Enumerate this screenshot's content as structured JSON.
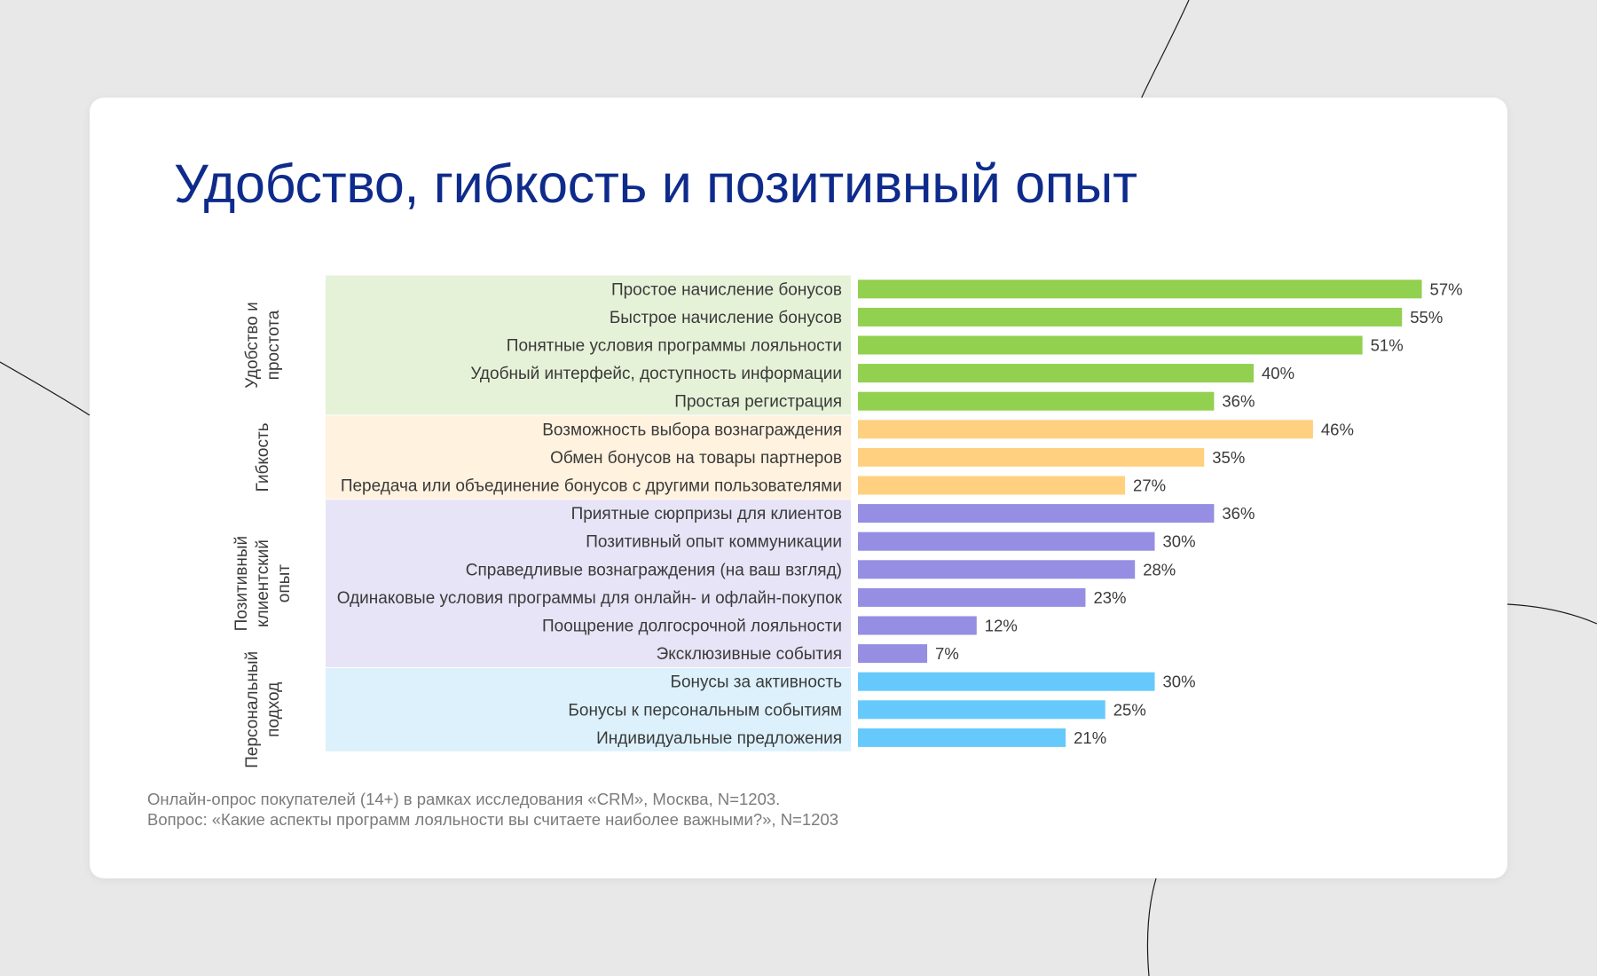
{
  "slide": {
    "title": "Удобство, гибкость и позитивный опыт"
  },
  "chart_data": {
    "type": "bar",
    "orientation": "horizontal",
    "value_suffix": "%",
    "groups": [
      {
        "name": "Удобство и простота",
        "color": "#92d050",
        "band_color": "#e6f2d8",
        "items": [
          {
            "label": "Простое начисление бонусов",
            "value": 57
          },
          {
            "label": "Быстрое начисление бонусов",
            "value": 55
          },
          {
            "label": "Понятные условия программы лояльности",
            "value": 51
          },
          {
            "label": "Удобный интерфейс, доступность информации",
            "value": 40
          },
          {
            "label": "Простая регистрация",
            "value": 36
          }
        ]
      },
      {
        "name": "Гибкость",
        "color": "#ffd07f",
        "band_color": "#fff2df",
        "items": [
          {
            "label": "Возможность выбора вознаграждения",
            "value": 46
          },
          {
            "label": "Обмен бонусов на товары партнеров",
            "value": 35
          },
          {
            "label": "Передача или объединение бонусов с другими пользователями",
            "value": 27
          }
        ]
      },
      {
        "name": "Позитивный клиентский опыт",
        "color": "#958ee3",
        "band_color": "#e6e4f6",
        "items": [
          {
            "label": "Приятные сюрпризы для клиентов",
            "value": 36
          },
          {
            "label": "Позитивный опыт коммуникации",
            "value": 30
          },
          {
            "label": "Справедливые вознаграждения (на ваш взгляд)",
            "value": 28
          },
          {
            "label": "Одинаковые условия программы для онлайн- и офлайн-покупок",
            "value": 23
          },
          {
            "label": "Поощрение долгосрочной лояльности",
            "value": 12
          },
          {
            "label": "Эксклюзивные события",
            "value": 7
          }
        ]
      },
      {
        "name": "Персональный подход",
        "color": "#66c9fb",
        "band_color": "#dcf1fc",
        "items": [
          {
            "label": "Бонусы за активность",
            "value": 30
          },
          {
            "label": "Бонусы к персональным событиям",
            "value": 25
          },
          {
            "label": "Индивидуальные предложения",
            "value": 21
          }
        ]
      }
    ],
    "group_label_lines": [
      [
        "Удобство и",
        "простота"
      ],
      [
        "Гибкость"
      ],
      [
        "Позитивный",
        "клиентский",
        "опыт"
      ],
      [
        "Персональный",
        "подход"
      ]
    ]
  },
  "footnote": {
    "line1": "Онлайн-опрос покупателей (14+) в рамках исследования «CRM», Москва, N=1203.",
    "line2": "Вопрос: «Какие аспекты программ лояльности вы считаете наиболее важными?», N=1203"
  }
}
